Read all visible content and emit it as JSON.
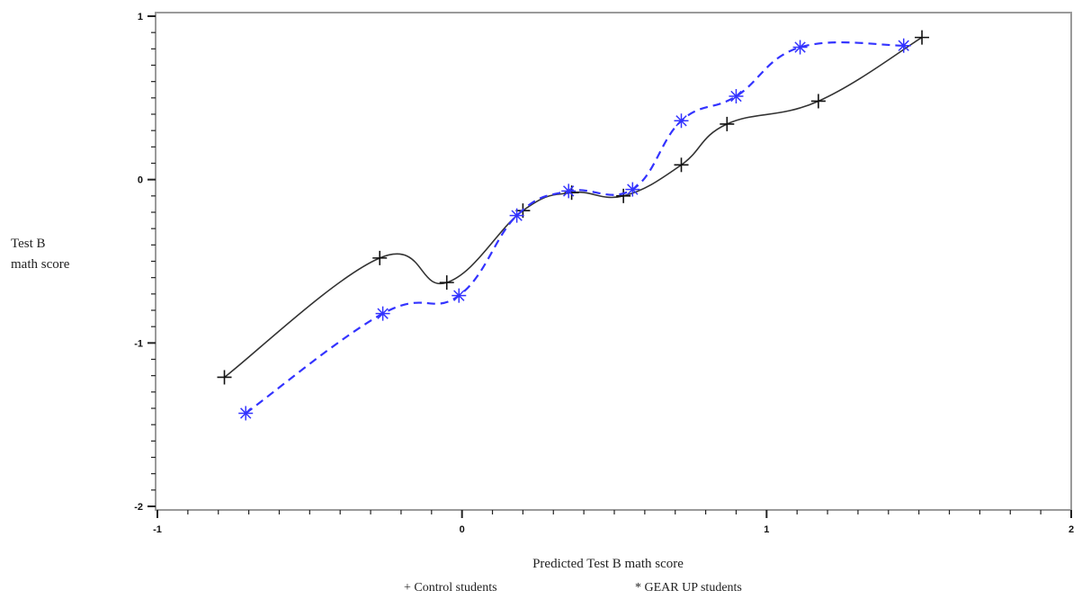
{
  "chart_data": {
    "type": "line",
    "xlabel": "Predicted Test B math score",
    "ylabel_lines": [
      "Test B",
      "math score"
    ],
    "xlim": [
      -1,
      2
    ],
    "ylim": [
      -2,
      1
    ],
    "x_ticks": [
      -1,
      0,
      1,
      2
    ],
    "y_ticks": [
      -2,
      -1,
      0,
      1
    ],
    "x_tick_labels": [
      "-1",
      "0",
      "1",
      "2"
    ],
    "y_tick_labels": [
      "-2",
      "-1",
      "0",
      "1"
    ],
    "grid": false,
    "legend_position": "bottom",
    "series": [
      {
        "name": "Control students",
        "legend_label": "+ Control students",
        "marker": "plus",
        "color": "#333333",
        "line_style": "solid",
        "points": [
          {
            "x": -0.78,
            "y": -1.21
          },
          {
            "x": -0.27,
            "y": -0.48
          },
          {
            "x": -0.05,
            "y": -0.63
          },
          {
            "x": 0.2,
            "y": -0.19
          },
          {
            "x": 0.36,
            "y": -0.08
          },
          {
            "x": 0.53,
            "y": -0.1
          },
          {
            "x": 0.72,
            "y": 0.09
          },
          {
            "x": 0.87,
            "y": 0.34
          },
          {
            "x": 1.17,
            "y": 0.48
          },
          {
            "x": 1.51,
            "y": 0.87
          }
        ]
      },
      {
        "name": "GEAR UP students",
        "legend_label": "* GEAR UP students",
        "marker": "asterisk",
        "color": "#3333ff",
        "line_style": "dashed",
        "points": [
          {
            "x": -0.71,
            "y": -1.43
          },
          {
            "x": -0.26,
            "y": -0.82
          },
          {
            "x": -0.01,
            "y": -0.71
          },
          {
            "x": 0.18,
            "y": -0.22
          },
          {
            "x": 0.35,
            "y": -0.07
          },
          {
            "x": 0.56,
            "y": -0.06
          },
          {
            "x": 0.72,
            "y": 0.36
          },
          {
            "x": 0.9,
            "y": 0.51
          },
          {
            "x": 1.11,
            "y": 0.81
          },
          {
            "x": 1.45,
            "y": 0.82
          }
        ]
      }
    ]
  }
}
